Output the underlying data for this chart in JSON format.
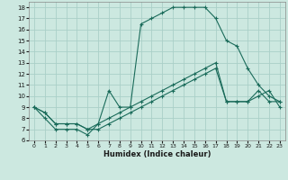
{
  "title": "",
  "xlabel": "Humidex (Indice chaleur)",
  "xlim": [
    -0.5,
    23.5
  ],
  "ylim": [
    6,
    18.5
  ],
  "bg_color": "#cce8e0",
  "grid_color": "#aacfc8",
  "line_color": "#1a6b5a",
  "xticks": [
    0,
    1,
    2,
    3,
    4,
    5,
    6,
    7,
    8,
    9,
    10,
    11,
    12,
    13,
    14,
    15,
    16,
    17,
    18,
    19,
    20,
    21,
    22,
    23
  ],
  "yticks": [
    6,
    7,
    8,
    9,
    10,
    11,
    12,
    13,
    14,
    15,
    16,
    17,
    18
  ],
  "line1_x": [
    0,
    1,
    2,
    3,
    4,
    5,
    6,
    7,
    8,
    9,
    10,
    11,
    12,
    13,
    14,
    15,
    16,
    17,
    18,
    19,
    20,
    21,
    22,
    23
  ],
  "line1_y": [
    9,
    8,
    7,
    7,
    7,
    6.5,
    7.5,
    10.5,
    9,
    9,
    16.5,
    17,
    17.5,
    18,
    18,
    18,
    18,
    17,
    15,
    14.5,
    12.5,
    11,
    10,
    9.5
  ],
  "line2_x": [
    0,
    1,
    2,
    3,
    4,
    5,
    6,
    7,
    8,
    9,
    10,
    11,
    12,
    13,
    14,
    15,
    16,
    17,
    18,
    19,
    20,
    21,
    22,
    23
  ],
  "line2_y": [
    9,
    8.5,
    7.5,
    7.5,
    7.5,
    7,
    7,
    7.5,
    8,
    8.5,
    9,
    9.5,
    10,
    10.5,
    11,
    11.5,
    12,
    12.5,
    9.5,
    9.5,
    9.5,
    10,
    10.5,
    9
  ],
  "line3_x": [
    0,
    1,
    2,
    3,
    4,
    5,
    6,
    7,
    8,
    9,
    10,
    11,
    12,
    13,
    14,
    15,
    16,
    17,
    18,
    19,
    20,
    21,
    22,
    23
  ],
  "line3_y": [
    9,
    8.5,
    7.5,
    7.5,
    7.5,
    7,
    7.5,
    8,
    8.5,
    9,
    9.5,
    10,
    10.5,
    11,
    11.5,
    12,
    12.5,
    13,
    9.5,
    9.5,
    9.5,
    10.5,
    9.5,
    9.5
  ]
}
